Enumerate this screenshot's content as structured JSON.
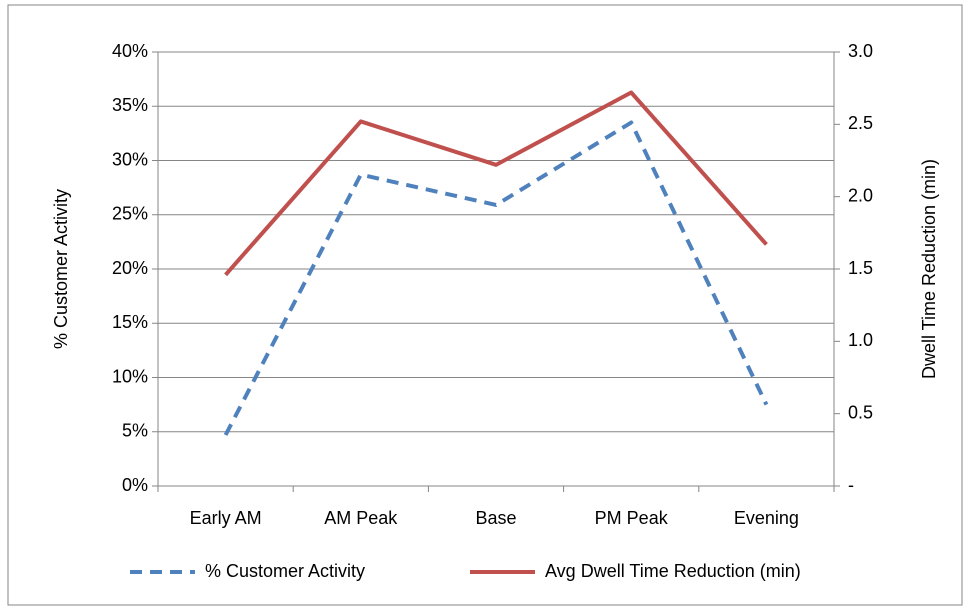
{
  "chart_data": {
    "type": "line",
    "categories": [
      "Early AM",
      "AM Peak",
      "Base",
      "PM Peak",
      "Evening"
    ],
    "series": [
      {
        "name": "% Customer Activity",
        "color": "#4f81bd",
        "dashed": true,
        "axis": "y",
        "values": [
          4.7,
          28.7,
          25.9,
          33.5,
          7.5
        ]
      },
      {
        "name": "Avg Dwell Time Reduction (min)",
        "color": "#c0504d",
        "dashed": false,
        "axis": "y2",
        "values": [
          1.46,
          2.52,
          2.22,
          2.72,
          1.67
        ]
      }
    ],
    "ylabel": "% Customer Activity",
    "y2label": "Dwell Time Reduction (min)",
    "ylim": [
      0,
      40
    ],
    "yticks": [
      {
        "value": 0,
        "label": "0%"
      },
      {
        "value": 5,
        "label": "5%"
      },
      {
        "value": 10,
        "label": "10%"
      },
      {
        "value": 15,
        "label": "15%"
      },
      {
        "value": 20,
        "label": "20%"
      },
      {
        "value": 25,
        "label": "25%"
      },
      {
        "value": 30,
        "label": "30%"
      },
      {
        "value": 35,
        "label": "35%"
      },
      {
        "value": 40,
        "label": "40%"
      }
    ],
    "y2lim": [
      0,
      3
    ],
    "y2ticks": [
      {
        "value": 0,
        "label": "-"
      },
      0.5,
      {
        "value": 1,
        "label": "1.0"
      },
      1.5,
      {
        "value": 2,
        "label": "2.0"
      },
      2.5,
      {
        "value": 3,
        "label": "3.0"
      }
    ],
    "grid": true,
    "legend": "bottom"
  }
}
